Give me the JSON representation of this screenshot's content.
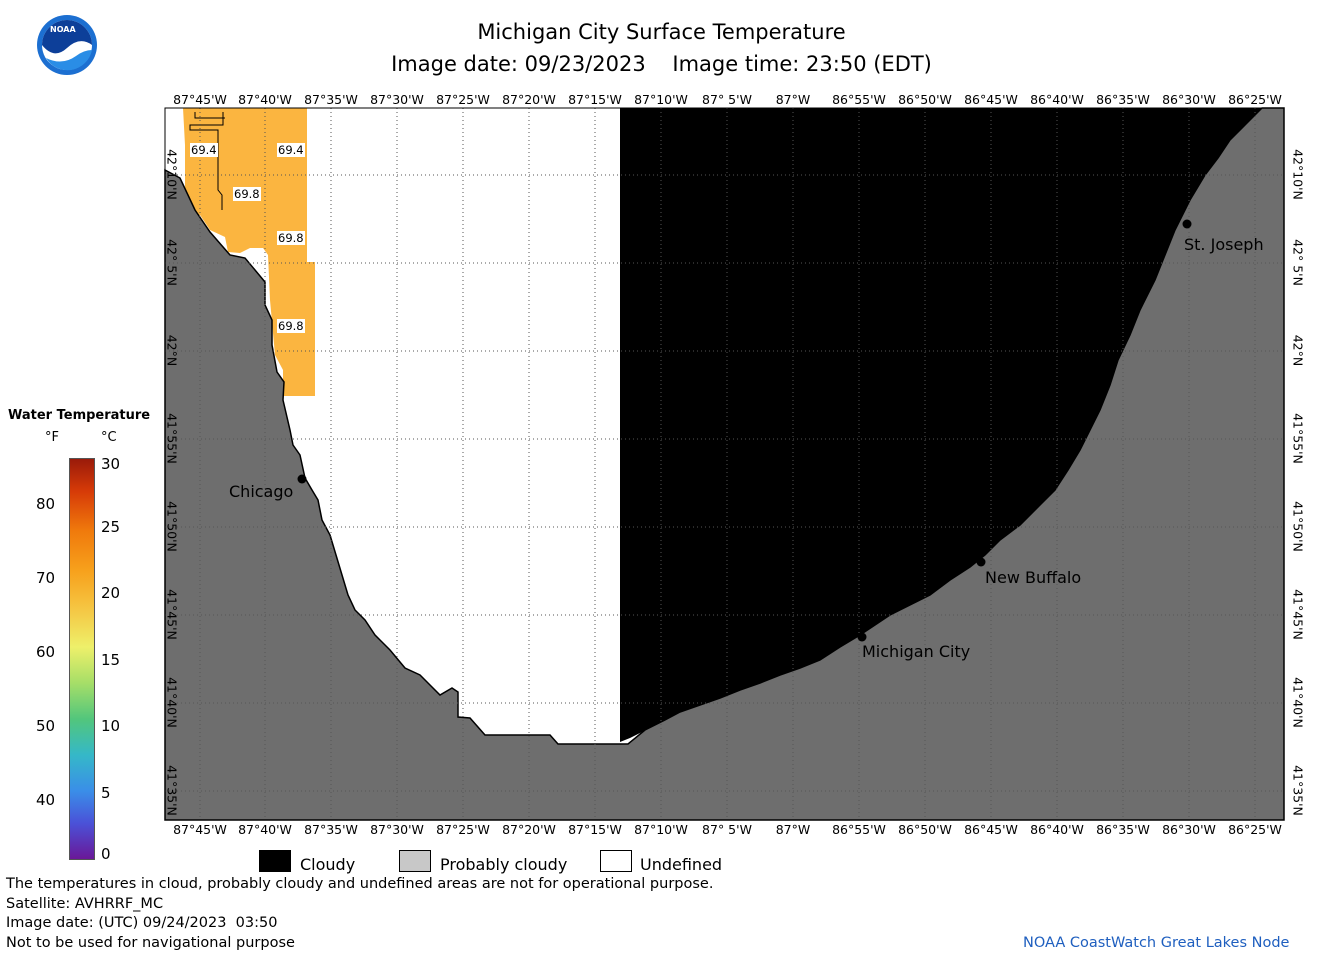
{
  "header": {
    "title": "Michigan City Surface Temperature",
    "subtitle": "Image date: 09/23/2023    Image time: 23:50 (EDT)"
  },
  "logo": {
    "text": "NOAA",
    "icon": "noaa-logo-icon"
  },
  "map": {
    "longitude_ticks": [
      "87°45'W",
      "87°40'W",
      "87°35'W",
      "87°30'W",
      "87°25'W",
      "87°20'W",
      "87°15'W",
      "87°10'W",
      "87° 5'W",
      "87°W",
      "86°55'W",
      "86°50'W",
      "86°45'W",
      "86°40'W",
      "86°35'W",
      "86°30'W",
      "86°25'W"
    ],
    "latitude_ticks": [
      "42°10'N",
      "42° 5'N",
      "42°N",
      "41°55'N",
      "41°50'N",
      "41°45'N",
      "41°40'N",
      "41°35'N"
    ],
    "cities": [
      {
        "name": "Chicago"
      },
      {
        "name": "St. Joseph"
      },
      {
        "name": "New Buffalo"
      },
      {
        "name": "Michigan City"
      }
    ],
    "temperature_readings": [
      "69.4",
      "69.4",
      "69.8",
      "69.8",
      "69.8"
    ],
    "colors": {
      "cloudy": "#000000",
      "land": "#6e6e6e",
      "undefined": "#ffffff",
      "warm_water": "#fbb540"
    }
  },
  "colorbar": {
    "title": "Water Temperature",
    "unit_f": "°F",
    "unit_c": "°C",
    "f_ticks": [
      "80",
      "70",
      "60",
      "50",
      "40"
    ],
    "c_ticks": [
      "30",
      "25",
      "20",
      "15",
      "10",
      "5",
      "0"
    ]
  },
  "legend": {
    "cloudy": "Cloudy",
    "probably_cloudy": "Probably cloudy",
    "undefined": "Undefined"
  },
  "footer": {
    "disclaimer": "The temperatures in cloud, probably cloudy and undefined areas are not for operational purpose.",
    "satellite": "Satellite: AVHRRF_MC",
    "utc_date": "Image date: (UTC) 09/24/2023  03:50",
    "navigation": "Not to be used for navigational purpose",
    "credit": "NOAA CoastWatch Great Lakes Node"
  }
}
